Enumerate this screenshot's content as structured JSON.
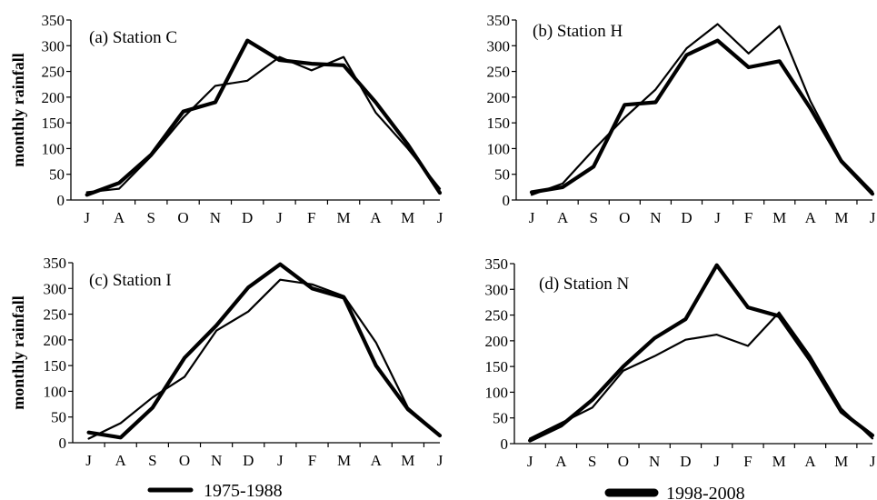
{
  "chart_data": [
    {
      "type": "line",
      "title": "(a) Station C",
      "xlabel": "",
      "ylabel": "monthly rainfall",
      "categories": [
        "J",
        "A",
        "S",
        "O",
        "N",
        "D",
        "J",
        "F",
        "M",
        "A",
        "M",
        "J"
      ],
      "ylim": [
        0,
        350
      ],
      "yticks": [
        0,
        50,
        100,
        150,
        200,
        250,
        300,
        350
      ],
      "series": [
        {
          "name": "1975-1988",
          "values": [
            15,
            22,
            85,
            160,
            222,
            232,
            278,
            252,
            278,
            170,
            100,
            22
          ]
        },
        {
          "name": "1998-2008",
          "values": [
            10,
            33,
            88,
            172,
            190,
            310,
            272,
            265,
            262,
            190,
            108,
            14
          ]
        }
      ]
    },
    {
      "type": "line",
      "title": "(b) Station H",
      "xlabel": "",
      "ylabel": "",
      "categories": [
        "J",
        "A",
        "S",
        "O",
        "N",
        "D",
        "J",
        "F",
        "M",
        "A",
        "M",
        "J"
      ],
      "ylim": [
        0,
        350
      ],
      "yticks": [
        0,
        50,
        100,
        150,
        200,
        250,
        300,
        350
      ],
      "series": [
        {
          "name": "1975-1988",
          "values": [
            10,
            32,
            98,
            160,
            215,
            295,
            342,
            285,
            338,
            192,
            78,
            16
          ]
        },
        {
          "name": "1998-2008",
          "values": [
            15,
            25,
            65,
            185,
            190,
            282,
            310,
            258,
            270,
            178,
            75,
            12
          ]
        }
      ]
    },
    {
      "type": "line",
      "title": "(c) Station I",
      "xlabel": "",
      "ylabel": "monthly rainfall",
      "categories": [
        "J",
        "A",
        "S",
        "O",
        "N",
        "D",
        "J",
        "F",
        "M",
        "A",
        "M",
        "J"
      ],
      "ylim": [
        0,
        350
      ],
      "yticks": [
        0,
        50,
        100,
        150,
        200,
        250,
        300,
        350
      ],
      "series": [
        {
          "name": "1975-1988",
          "values": [
            8,
            38,
            88,
            128,
            218,
            255,
            317,
            308,
            285,
            195,
            68,
            15
          ]
        },
        {
          "name": "1998-2008",
          "values": [
            20,
            10,
            68,
            165,
            228,
            302,
            347,
            300,
            282,
            150,
            65,
            14
          ]
        }
      ]
    },
    {
      "type": "line",
      "title": "(d) Station N",
      "xlabel": "",
      "ylabel": "",
      "categories": [
        "J",
        "A",
        "S",
        "O",
        "N",
        "D",
        "J",
        "F",
        "M",
        "A",
        "M",
        "J"
      ],
      "ylim": [
        0,
        350
      ],
      "yticks": [
        0,
        50,
        100,
        150,
        200,
        250,
        300,
        350
      ],
      "series": [
        {
          "name": "1975-1988",
          "values": [
            10,
            40,
            70,
            142,
            170,
            202,
            212,
            190,
            255,
            170,
            68,
            10
          ]
        },
        {
          "name": "1998-2008",
          "values": [
            6,
            35,
            85,
            150,
            205,
            242,
            347,
            265,
            248,
            162,
            62,
            16
          ]
        }
      ]
    }
  ],
  "legend": [
    {
      "label": "1975-1988",
      "weight": "thin"
    },
    {
      "label": "1998-2008",
      "weight": "thick"
    }
  ]
}
